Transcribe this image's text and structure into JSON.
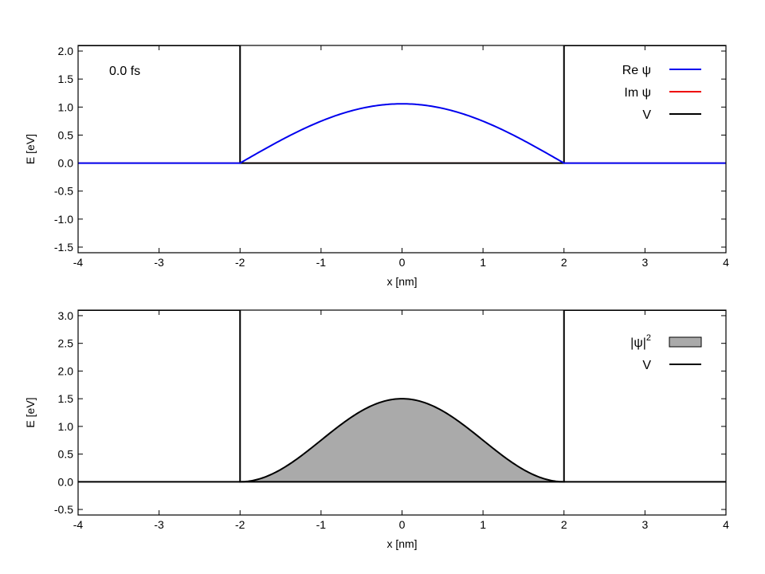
{
  "chart_data": [
    {
      "type": "line",
      "xlabel": "x [nm]",
      "ylabel": "E [eV]",
      "xlim": [
        -4,
        4
      ],
      "ylim": [
        -1.6,
        2.1
      ],
      "xticks": [
        "-4",
        "-3",
        "-2",
        "-1",
        "0",
        "1",
        "2",
        "3",
        "4"
      ],
      "yticks": [
        "-1.5",
        "-1.0",
        "-0.5",
        "0.0",
        "0.5",
        "1.0",
        "1.5",
        "2.0"
      ],
      "annotation": "0.0 fs",
      "legend_position": "top-right",
      "legend": [
        {
          "label": "Re ψ",
          "color": "#0000ee"
        },
        {
          "label": "Im ψ",
          "color": "#ee0000"
        },
        {
          "label": "V",
          "color": "#000000"
        }
      ],
      "series": [
        {
          "name": "Re ψ",
          "color": "#0000ee",
          "x": [
            -4,
            -2,
            -1.5,
            -1,
            -0.5,
            0,
            0.5,
            1,
            1.5,
            2,
            4
          ],
          "y": [
            0,
            0,
            0.405,
            0.748,
            0.977,
            1.058,
            0.977,
            0.748,
            0.405,
            0,
            0
          ]
        },
        {
          "name": "Im ψ",
          "color": "#ee0000",
          "x": [
            -4,
            4
          ],
          "y": [
            0,
            0
          ]
        },
        {
          "name": "V",
          "color": "#000000",
          "x": [
            -4,
            -2,
            -2,
            2,
            2,
            4
          ],
          "y": [
            2.1,
            2.1,
            0,
            0,
            2.1,
            2.1
          ]
        }
      ]
    },
    {
      "type": "area",
      "xlabel": "x [nm]",
      "ylabel": "E [eV]",
      "xlim": [
        -4,
        4
      ],
      "ylim": [
        -0.6,
        3.1
      ],
      "xticks": [
        "-4",
        "-3",
        "-2",
        "-1",
        "0",
        "1",
        "2",
        "3",
        "4"
      ],
      "yticks": [
        "-0.5",
        "0.0",
        "0.5",
        "1.0",
        "1.5",
        "2.0",
        "2.5",
        "3.0"
      ],
      "legend_position": "top-right",
      "legend": [
        {
          "label": "|ψ|",
          "sup": "2",
          "color": "#aaaaaa"
        },
        {
          "label": "V",
          "color": "#000000"
        }
      ],
      "series": [
        {
          "name": "|ψ|²",
          "color": "#aaaaaa",
          "x": [
            -4,
            -2,
            -1.5,
            -1,
            -0.5,
            0,
            0.5,
            1,
            1.5,
            2,
            4
          ],
          "y": [
            0,
            0,
            0.22,
            0.75,
            1.28,
            1.5,
            1.28,
            0.75,
            0.22,
            0,
            0
          ]
        },
        {
          "name": "V",
          "color": "#000000",
          "x": [
            -4,
            -2,
            -2,
            2,
            2,
            4
          ],
          "y": [
            3.1,
            3.1,
            0,
            0,
            3.1,
            3.1
          ]
        }
      ]
    }
  ]
}
